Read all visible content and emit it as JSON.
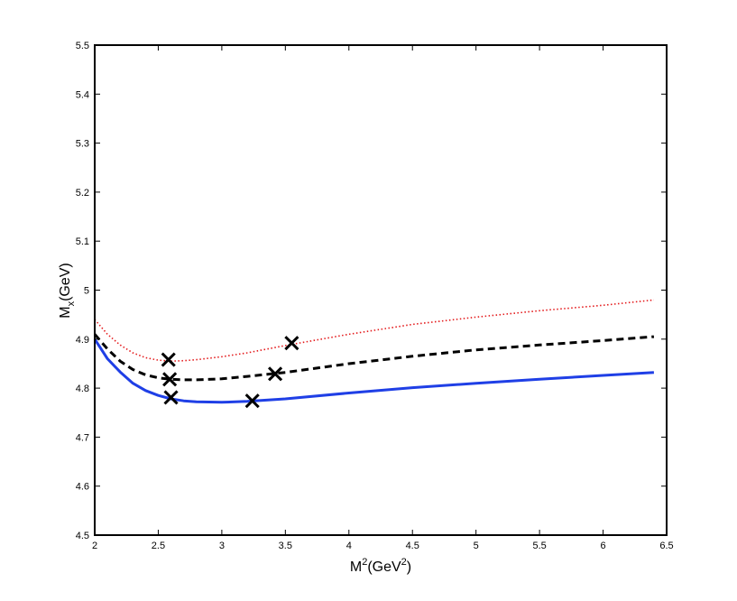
{
  "chart_data": {
    "type": "line",
    "title": "",
    "xlabel": {
      "base": "M",
      "sup": "2",
      "mid": "(GeV",
      "sup2": "2",
      "end": ")"
    },
    "ylabel": {
      "base": "M",
      "sub": "x",
      "end": "(GeV)"
    },
    "xlim": [
      2,
      6.5
    ],
    "ylim": [
      4.5,
      5.5
    ],
    "xticks": [
      "2",
      "2.5",
      "3",
      "3.5",
      "4",
      "4.5",
      "5",
      "5.5",
      "6",
      "6.5"
    ],
    "yticks": [
      "4.5",
      "4.6",
      "4.7",
      "4.8",
      "4.9",
      "5",
      "5.1",
      "5.2",
      "5.3",
      "5.4",
      "5.5"
    ],
    "grid": false,
    "series": [
      {
        "style": "solid",
        "color": "#1f3fe6",
        "x": [
          2.0,
          2.1,
          2.2,
          2.3,
          2.4,
          2.5,
          2.6,
          2.7,
          2.8,
          3.0,
          3.2,
          3.5,
          4.0,
          4.5,
          5.0,
          5.5,
          6.0,
          6.4
        ],
        "y": [
          4.9,
          4.86,
          4.833,
          4.81,
          4.795,
          4.785,
          4.778,
          4.774,
          4.772,
          4.771,
          4.773,
          4.778,
          4.79,
          4.801,
          4.81,
          4.818,
          4.826,
          4.832
        ]
      },
      {
        "style": "dashed",
        "color": "#000000",
        "x": [
          2.0,
          2.1,
          2.2,
          2.3,
          2.4,
          2.5,
          2.6,
          2.7,
          2.8,
          3.0,
          3.2,
          3.5,
          4.0,
          4.5,
          5.0,
          5.5,
          6.0,
          6.4
        ],
        "y": [
          4.91,
          4.88,
          4.855,
          4.838,
          4.827,
          4.821,
          4.818,
          4.817,
          4.817,
          4.819,
          4.824,
          4.832,
          4.85,
          4.865,
          4.878,
          4.888,
          4.897,
          4.905
        ]
      },
      {
        "style": "dotted",
        "color": "#e41a1c",
        "x": [
          2.0,
          2.1,
          2.2,
          2.3,
          2.4,
          2.5,
          2.6,
          2.7,
          2.8,
          3.0,
          3.2,
          3.5,
          4.0,
          4.5,
          5.0,
          5.5,
          6.0,
          6.4
        ],
        "y": [
          4.94,
          4.91,
          4.888,
          4.872,
          4.862,
          4.857,
          4.855,
          4.856,
          4.858,
          4.864,
          4.872,
          4.887,
          4.91,
          4.93,
          4.945,
          4.958,
          4.969,
          4.98
        ]
      }
    ],
    "markers": [
      {
        "x": 2.58,
        "y": 4.858
      },
      {
        "x": 3.55,
        "y": 4.892
      },
      {
        "x": 2.59,
        "y": 4.818
      },
      {
        "x": 3.42,
        "y": 4.829
      },
      {
        "x": 2.6,
        "y": 4.781
      },
      {
        "x": 3.24,
        "y": 4.774
      }
    ]
  }
}
